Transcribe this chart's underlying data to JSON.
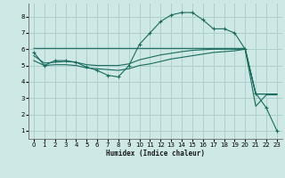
{
  "xlabel": "Humidex (Indice chaleur)",
  "bg_color": "#cde8e5",
  "grid_color": "#aed0cc",
  "line_color": "#1a6b5e",
  "xlim": [
    -0.5,
    23.5
  ],
  "ylim": [
    0.5,
    8.8
  ],
  "yticks": [
    1,
    2,
    3,
    4,
    5,
    6,
    7,
    8
  ],
  "xticks": [
    0,
    1,
    2,
    3,
    4,
    5,
    6,
    7,
    8,
    9,
    10,
    11,
    12,
    13,
    14,
    15,
    16,
    17,
    18,
    19,
    20,
    21,
    22,
    23
  ],
  "series": [
    {
      "x": [
        0,
        1,
        2,
        3,
        4,
        5,
        6,
        7,
        8,
        9,
        10,
        11,
        12,
        13,
        14,
        15,
        16,
        17,
        18,
        19,
        20,
        21,
        22,
        23
      ],
      "y": [
        5.8,
        5.0,
        5.3,
        5.3,
        5.2,
        4.9,
        4.7,
        4.4,
        4.3,
        5.0,
        6.3,
        7.0,
        7.7,
        8.1,
        8.25,
        8.25,
        7.8,
        7.25,
        7.25,
        7.0,
        6.0,
        3.3,
        2.4,
        1.0
      ],
      "marker": "+"
    },
    {
      "x": [
        0,
        1,
        2,
        3,
        4,
        5,
        6,
        7,
        8,
        9,
        10,
        11,
        12,
        13,
        14,
        15,
        16,
        17,
        18,
        19,
        20,
        21,
        22,
        23
      ],
      "y": [
        6.05,
        6.05,
        6.05,
        6.05,
        6.05,
        6.05,
        6.05,
        6.05,
        6.05,
        6.05,
        6.05,
        6.05,
        6.05,
        6.05,
        6.05,
        6.05,
        6.05,
        6.05,
        6.05,
        6.05,
        6.05,
        3.25,
        3.25,
        3.25
      ],
      "marker": null
    },
    {
      "x": [
        0,
        1,
        2,
        3,
        4,
        5,
        6,
        7,
        8,
        9,
        10,
        11,
        12,
        13,
        14,
        15,
        16,
        17,
        18,
        19,
        20,
        21,
        22,
        23
      ],
      "y": [
        5.6,
        5.15,
        5.2,
        5.25,
        5.2,
        5.05,
        5.0,
        5.0,
        5.0,
        5.1,
        5.35,
        5.5,
        5.65,
        5.75,
        5.85,
        5.93,
        5.97,
        6.0,
        6.0,
        6.0,
        6.0,
        3.25,
        3.25,
        3.25
      ],
      "marker": null
    },
    {
      "x": [
        0,
        1,
        2,
        3,
        4,
        5,
        6,
        7,
        8,
        9,
        10,
        11,
        12,
        13,
        14,
        15,
        16,
        17,
        18,
        19,
        20,
        21,
        22,
        23
      ],
      "y": [
        5.3,
        5.0,
        5.05,
        5.05,
        5.0,
        4.85,
        4.8,
        4.75,
        4.7,
        4.8,
        5.0,
        5.1,
        5.25,
        5.4,
        5.5,
        5.6,
        5.7,
        5.8,
        5.85,
        5.9,
        6.0,
        2.5,
        3.2,
        3.2
      ],
      "marker": null
    }
  ]
}
